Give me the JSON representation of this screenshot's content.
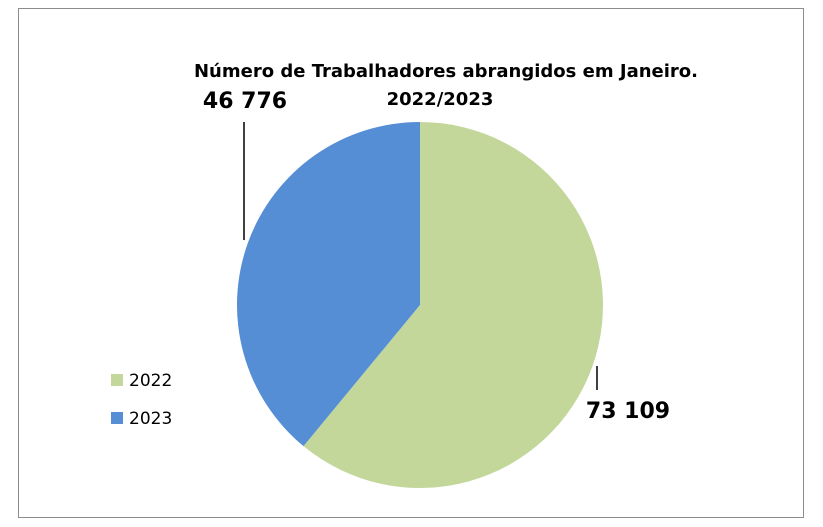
{
  "chart_data": {
    "type": "pie",
    "title": [
      "Número de Trabalhadores abrangidos em Janeiro.",
      "2022/2023"
    ],
    "categories": [
      "2022",
      "2023"
    ],
    "values": [
      73109,
      46776
    ],
    "value_labels": [
      "73 109",
      "46 776"
    ],
    "colors": [
      "#c4d79b",
      "#558ed5"
    ],
    "legend": "left"
  }
}
